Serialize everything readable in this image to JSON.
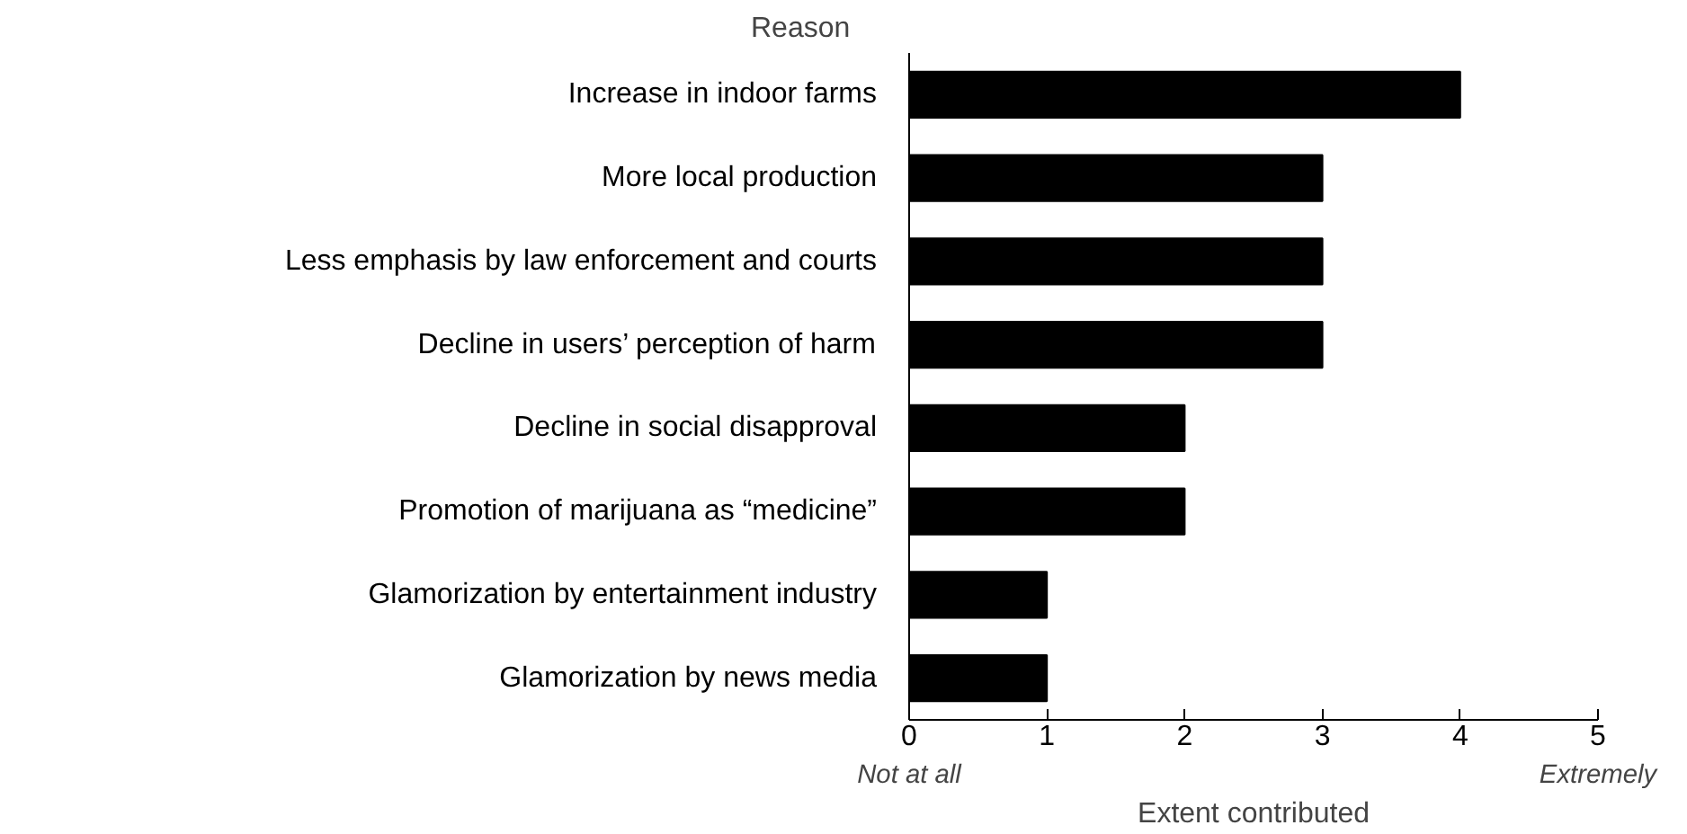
{
  "chart_data": {
    "type": "bar",
    "orientation": "horizontal",
    "ylabel": "Reason",
    "xlabel": "Extent contributed",
    "categories": [
      "Increase in indoor farms",
      "More local production",
      "Less emphasis by law enforcement and courts",
      "Decline in users’ perception of harm",
      "Decline in social disapproval",
      "Promotion of marijuana as “medicine”",
      "Glamorization by entertainment industry",
      "Glamorization by news media"
    ],
    "values": [
      4,
      3,
      3,
      3,
      2,
      2,
      1,
      1
    ],
    "color": "#000000",
    "xlim": [
      0,
      5
    ],
    "xticks": [
      0,
      1,
      2,
      3,
      4,
      5
    ],
    "grid": false,
    "annotations": [
      "Not at all",
      "Extremely"
    ]
  }
}
